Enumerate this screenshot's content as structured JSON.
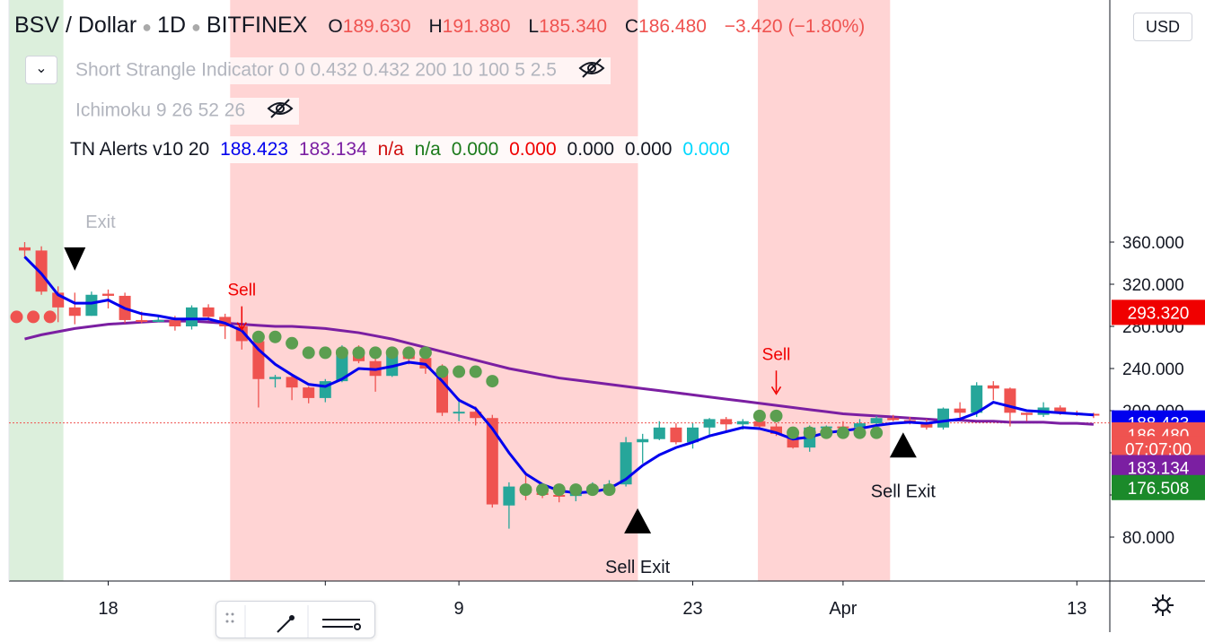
{
  "header": {
    "symbol": "BSV / Dollar",
    "interval": "1D",
    "exchange": "BITFINEX",
    "open_label": "O",
    "open": "189.630",
    "high_label": "H",
    "high": "191.880",
    "low_label": "L",
    "low": "185.340",
    "close_label": "C",
    "close": "186.480",
    "change": "−3.420 (−1.80%)"
  },
  "indicators": {
    "strangle": "Short Strangle Indicator 0 0 0.432 0.432 200 10 100 5 2.5",
    "ichimoku": "Ichimoku 9 26 52 26",
    "tn_name": "TN Alerts v10 20",
    "tn_v1": "188.423",
    "tn_v2": "183.134",
    "tn_v3": "n/a",
    "tn_v4": "n/a",
    "tn_v5": "0.000",
    "tn_v6": "0.000",
    "tn_v7": "0.000",
    "tn_v8": "0.000",
    "tn_v9": "0.000"
  },
  "currency_button": "USD",
  "colors": {
    "up": "#26a69a",
    "down": "#ef5350",
    "ema": "#0000ee",
    "sma": "#7b1fa2",
    "dots": "#5b9e50",
    "red_zone": "#ffcccc",
    "green_zone": "#d6ecd6"
  },
  "chart_data": {
    "type": "candlestick",
    "y_axis": {
      "ticks": [
        80,
        120,
        160,
        200,
        240,
        280,
        320,
        360
      ],
      "tick_labels": [
        "80.000",
        "",
        "",
        "200.000",
        "240.000",
        "280.000",
        "320.000",
        "360.000"
      ]
    },
    "x_axis": {
      "tick_labels": [
        {
          "i": 5,
          "text": "18"
        },
        {
          "i": 18,
          "text": ""
        },
        {
          "i": 26,
          "text": "9"
        },
        {
          "i": 40,
          "text": "23"
        },
        {
          "i": 49,
          "text": "Apr"
        },
        {
          "i": 63,
          "text": "13"
        }
      ]
    },
    "candles": [
      [
        355,
        360,
        345,
        352
      ],
      [
        352,
        356,
        310,
        313
      ],
      [
        312,
        318,
        284,
        298
      ],
      [
        298,
        312,
        282,
        290
      ],
      [
        290,
        313,
        290,
        310
      ],
      [
        311,
        315,
        297,
        309
      ],
      [
        309,
        312,
        283,
        286
      ],
      [
        286,
        294,
        283,
        285
      ],
      [
        285,
        291,
        284,
        286
      ],
      [
        286,
        290,
        276,
        280
      ],
      [
        280,
        300,
        277,
        298
      ],
      [
        298,
        301,
        285,
        289
      ],
      [
        289,
        292,
        268,
        280
      ],
      [
        280,
        282,
        258,
        266
      ],
      [
        266,
        275,
        203,
        230
      ],
      [
        230,
        234,
        222,
        232
      ],
      [
        232,
        234,
        210,
        222
      ],
      [
        222,
        223,
        207,
        212
      ],
      [
        212,
        230,
        208,
        228
      ],
      [
        228,
        262,
        227,
        258
      ],
      [
        258,
        262,
        245,
        247
      ],
      [
        247,
        256,
        218,
        233
      ],
      [
        233,
        256,
        232,
        254
      ],
      [
        254,
        257,
        244,
        249
      ],
      [
        250,
        259,
        235,
        240
      ],
      [
        240,
        244,
        195,
        198
      ],
      [
        198,
        212,
        190,
        199
      ],
      [
        199,
        204,
        186,
        193
      ],
      [
        193,
        196,
        108,
        111
      ],
      [
        110,
        132,
        88,
        128
      ],
      [
        128,
        142,
        115,
        122
      ],
      [
        122,
        130,
        117,
        120
      ],
      [
        120,
        127,
        113,
        119
      ],
      [
        119,
        128,
        114,
        124
      ],
      [
        124,
        132,
        120,
        128
      ],
      [
        128,
        134,
        124,
        130
      ],
      [
        130,
        175,
        128,
        170
      ],
      [
        170,
        178,
        150,
        173
      ],
      [
        173,
        190,
        172,
        184
      ],
      [
        184,
        188,
        168,
        170
      ],
      [
        170,
        188,
        164,
        184
      ],
      [
        184,
        193,
        176,
        192
      ],
      [
        192,
        194,
        180,
        187
      ],
      [
        187,
        192,
        182,
        190
      ],
      [
        190,
        195,
        183,
        185
      ],
      [
        185,
        188,
        176,
        178
      ],
      [
        178,
        182,
        164,
        165
      ],
      [
        165,
        186,
        161,
        184
      ],
      [
        184,
        186,
        178,
        185
      ],
      [
        185,
        190,
        182,
        184
      ],
      [
        184,
        192,
        180,
        188
      ],
      [
        188,
        195,
        186,
        193
      ],
      [
        193,
        196,
        190,
        191
      ],
      [
        191,
        194,
        187,
        189
      ],
      [
        189,
        192,
        182,
        184
      ],
      [
        184,
        203,
        182,
        202
      ],
      [
        202,
        208,
        193,
        198
      ],
      [
        198,
        227,
        194,
        224
      ],
      [
        224,
        228,
        210,
        221
      ],
      [
        221,
        222,
        185,
        198
      ],
      [
        198,
        198,
        190,
        196
      ],
      [
        196,
        208,
        194,
        203
      ],
      [
        203,
        205,
        196,
        198
      ],
      [
        198,
        200,
        195,
        197
      ],
      [
        197,
        198,
        193,
        196
      ]
    ],
    "ema20": [
      346,
      330,
      310,
      302,
      302,
      305,
      297,
      292,
      290,
      287,
      287,
      287,
      283,
      276,
      258,
      244,
      234,
      225,
      223,
      230,
      240,
      239,
      242,
      246,
      244,
      228,
      210,
      202,
      183,
      160,
      140,
      130,
      124,
      122,
      123,
      126,
      135,
      148,
      158,
      165,
      170,
      176,
      180,
      184,
      183,
      179,
      173,
      175,
      179,
      181,
      183,
      186,
      188,
      189,
      188,
      190,
      192,
      198,
      208,
      204,
      200,
      199,
      198,
      197,
      196
    ],
    "sma_purple": [
      268,
      272,
      275,
      278,
      280,
      282,
      283,
      284,
      285,
      285,
      285,
      284,
      283,
      282,
      281,
      280,
      280,
      279,
      278,
      276,
      274,
      271,
      268,
      264,
      260,
      256,
      252,
      248,
      244,
      240,
      237,
      234,
      231,
      229,
      227,
      225,
      223,
      221,
      219,
      217,
      215,
      213,
      211,
      209,
      207,
      205,
      203,
      201,
      199,
      197,
      196,
      195,
      194,
      193,
      192,
      191,
      191,
      190,
      190,
      189,
      189,
      189,
      188,
      188,
      187
    ],
    "dots_top": [
      {
        "i": 0,
        "v": 289
      },
      {
        "i": 1,
        "v": 289
      },
      {
        "i": 2,
        "v": 289
      },
      {
        "i": 14,
        "v": 270
      },
      {
        "i": 15,
        "v": 270
      },
      {
        "i": 16,
        "v": 264
      },
      {
        "i": 17,
        "v": 255
      },
      {
        "i": 18,
        "v": 255
      },
      {
        "i": 19,
        "v": 255
      },
      {
        "i": 20,
        "v": 255
      },
      {
        "i": 21,
        "v": 255
      },
      {
        "i": 22,
        "v": 255
      },
      {
        "i": 23,
        "v": 255
      },
      {
        "i": 24,
        "v": 255
      },
      {
        "i": 25,
        "v": 237
      },
      {
        "i": 26,
        "v": 237
      },
      {
        "i": 27,
        "v": 237
      },
      {
        "i": 28,
        "v": 228
      },
      {
        "i": 30,
        "v": 125
      },
      {
        "i": 31,
        "v": 125
      },
      {
        "i": 32,
        "v": 125
      },
      {
        "i": 33,
        "v": 125
      },
      {
        "i": 34,
        "v": 125
      },
      {
        "i": 35,
        "v": 125
      },
      {
        "i": 44,
        "v": 195
      },
      {
        "i": 45,
        "v": 195
      },
      {
        "i": 46,
        "v": 179
      },
      {
        "i": 47,
        "v": 179
      },
      {
        "i": 48,
        "v": 179
      },
      {
        "i": 49,
        "v": 179
      },
      {
        "i": 50,
        "v": 179
      },
      {
        "i": 51,
        "v": 179
      }
    ],
    "zones": [
      {
        "from": 0,
        "to": 2.3,
        "kind": "green"
      },
      {
        "from": 12.8,
        "to": 36.7,
        "kind": "red"
      },
      {
        "from": 44.4,
        "to": 51.8,
        "kind": "red"
      }
    ],
    "annotations": [
      {
        "type": "sell",
        "i": 13,
        "v": 265,
        "text": "Sell"
      },
      {
        "type": "sell",
        "i": 45,
        "v": 204,
        "text": "Sell"
      },
      {
        "type": "exit_up",
        "i": 36.7,
        "v": 92,
        "text": "Sell Exit"
      },
      {
        "type": "exit_up",
        "i": 52.6,
        "v": 164,
        "text": "Sell Exit"
      },
      {
        "type": "exit_down",
        "i": 3,
        "v": 338,
        "text": "Exit"
      }
    ],
    "price_labels": [
      {
        "text": "293.320",
        "v": 293.3,
        "bg": "#f00000",
        "fg": "#ffffff"
      },
      {
        "text": "188.423",
        "v": 188.4,
        "bg": "#0000ee",
        "fg": "#ffffff"
      },
      {
        "text": "186.480",
        "v": 177,
        "bg": "#ef5350",
        "fg": "#ffffff"
      },
      {
        "text": "07:07:00",
        "v": 164,
        "bg": "#ef5350",
        "fg": "#ffffff"
      },
      {
        "text": "183.134",
        "v": 146,
        "bg": "#7b1fa2",
        "fg": "#ffffff"
      },
      {
        "text": "176.508",
        "v": 127,
        "bg": "#1b8a2a",
        "fg": "#ffffff"
      }
    ]
  }
}
